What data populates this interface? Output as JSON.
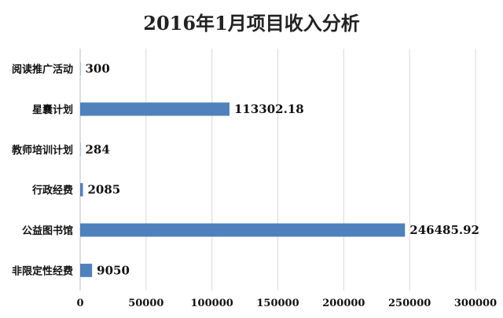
{
  "chart_data": {
    "type": "bar",
    "orientation": "horizontal",
    "title": "2016年1月项目收入分析",
    "categories": [
      "阅读推广活动",
      "星囊计划",
      "教师培训计划",
      "行政经费",
      "公益图书馆",
      "非限定性经费"
    ],
    "values": [
      300,
      113302.18,
      284,
      2085,
      246485.92,
      9050
    ],
    "value_labels": [
      "300",
      "113302.18",
      "284",
      "2085",
      "246485.92",
      "9050"
    ],
    "x_ticks": [
      "0",
      "50000",
      "100000",
      "150000",
      "200000",
      "250000",
      "300000"
    ],
    "xlim": [
      0,
      300000
    ],
    "grid": true,
    "legend": "none",
    "bar_color": "#4f81bd"
  }
}
